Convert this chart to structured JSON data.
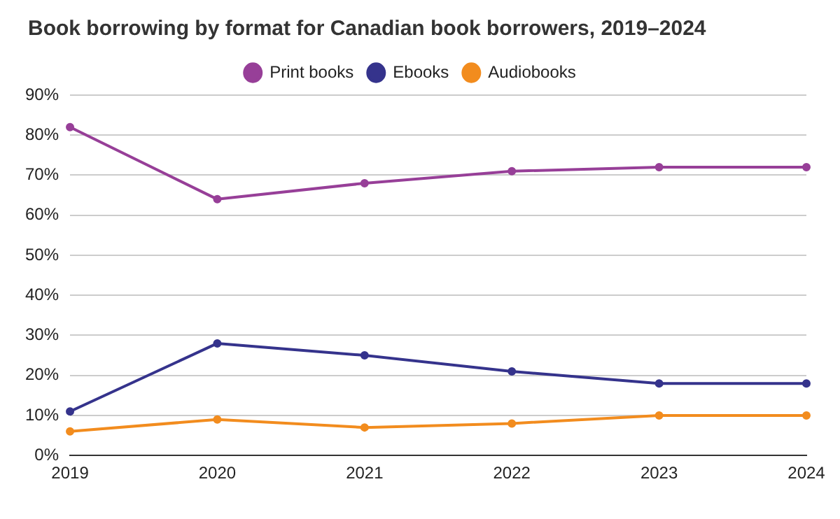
{
  "chart_data": {
    "type": "line",
    "title": "Book borrowing by format for Canadian book borrowers, 2019–2024",
    "categories": [
      "2019",
      "2020",
      "2021",
      "2022",
      "2023",
      "2024"
    ],
    "series": [
      {
        "name": "Print books",
        "color": "#973f98",
        "values": [
          82,
          64,
          68,
          71,
          72,
          72
        ]
      },
      {
        "name": "Ebooks",
        "color": "#35338c",
        "values": [
          11,
          28,
          25,
          21,
          18,
          18
        ]
      },
      {
        "name": "Audiobooks",
        "color": "#f28c1e",
        "values": [
          6,
          9,
          7,
          8,
          10,
          10
        ]
      }
    ],
    "ylim": [
      0,
      90
    ],
    "yticks": [
      {
        "value": 0,
        "label": "0%"
      },
      {
        "value": 10,
        "label": "10%"
      },
      {
        "value": 20,
        "label": "20%"
      },
      {
        "value": 30,
        "label": "30%"
      },
      {
        "value": 40,
        "label": "40%"
      },
      {
        "value": 50,
        "label": "50%"
      },
      {
        "value": 60,
        "label": "60%"
      },
      {
        "value": 70,
        "label": "70%"
      },
      {
        "value": 80,
        "label": "80%"
      },
      {
        "value": 90,
        "label": "90%"
      }
    ],
    "grid": "y",
    "legend": "top",
    "marker": "circle",
    "line_style": "solid"
  }
}
